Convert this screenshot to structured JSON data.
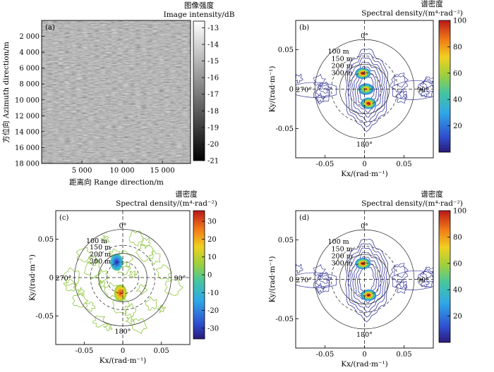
{
  "chart_data": [
    {
      "type": "heatmap",
      "panel_label": "(a)",
      "colorbar_title_cn": "图像强度",
      "colorbar_title_en": "Image intensity/dB",
      "xlabel": "距离向 Range direction/m",
      "ylabel": "方位向 Azimuth direction/m",
      "xlim": [
        0,
        18500
      ],
      "ylim": [
        18000,
        0
      ],
      "x_ticks": [
        "5 000",
        "10 000",
        "15 000"
      ],
      "x_tick_values": [
        5000,
        10000,
        15000
      ],
      "y_ticks": [
        "2 000",
        "4 000",
        "6 000",
        "8 000",
        "10 000",
        "12 000",
        "14 000",
        "16 000",
        "18 000"
      ],
      "y_tick_values": [
        2000,
        4000,
        6000,
        8000,
        10000,
        12000,
        14000,
        16000,
        18000
      ],
      "colorbar_range": [
        -21,
        -12.6
      ],
      "colorbar_ticks": [
        "-13",
        "-14",
        "-15",
        "-16",
        "-17",
        "-18",
        "-19",
        "-20",
        "-21"
      ],
      "colorbar_tick_values": [
        -13,
        -14,
        -15,
        -16,
        -17,
        -18,
        -19,
        -20,
        -21
      ],
      "colormap": [
        "#000000",
        "#ffffff"
      ]
    },
    {
      "type": "contour",
      "panel_label": "(b)",
      "colorbar_title_cn": "谱密度",
      "colorbar_title_en": "Spectral density/(m⁴·rad⁻²)",
      "xlabel": "Kx/(rad·m⁻¹)",
      "ylabel": "Ky/(rad·m⁻¹)",
      "xlim": [
        -0.087,
        0.087
      ],
      "ylim": [
        -0.087,
        0.087
      ],
      "x_ticks": [
        "-0.05",
        "0",
        "0.05"
      ],
      "x_tick_values": [
        -0.05,
        0,
        0.05
      ],
      "y_ticks": [
        "0.05",
        "0",
        "-0.05"
      ],
      "y_tick_values": [
        0.05,
        0,
        -0.05
      ],
      "colorbar_range": [
        0,
        100
      ],
      "colorbar_ticks": [
        "100",
        "80",
        "60",
        "40",
        "20"
      ],
      "colorbar_tick_values": [
        100,
        80,
        60,
        40,
        20
      ],
      "circle_labels": [
        "100 m",
        "150 m",
        "200 m",
        "300 m"
      ],
      "angle_labels": [
        "0°",
        "90°",
        "180°",
        "270°"
      ],
      "peaks": [
        {
          "kx": -0.002,
          "ky": 0.02,
          "value": 100
        },
        {
          "kx": 0.002,
          "ky": 0.0,
          "value": 85
        },
        {
          "kx": 0.005,
          "ky": -0.018,
          "value": 100
        }
      ]
    },
    {
      "type": "contour",
      "panel_label": "(c)",
      "colorbar_title_cn": "谱密度",
      "colorbar_title_en": "Spectral density/(m⁴·rad⁻²)",
      "xlabel": "Kx/(rad·m⁻¹)",
      "ylabel": "Ky/(rad·m⁻¹)",
      "xlim": [
        -0.087,
        0.087
      ],
      "ylim": [
        -0.087,
        0.087
      ],
      "x_ticks": [
        "-0.05",
        "0",
        "0.05"
      ],
      "x_tick_values": [
        -0.05,
        0,
        0.05
      ],
      "y_ticks": [
        "0.05",
        "0",
        "-0.05"
      ],
      "y_tick_values": [
        0.05,
        0,
        -0.05
      ],
      "colorbar_range": [
        -36,
        36
      ],
      "colorbar_ticks": [
        "30",
        "20",
        "10",
        "0",
        "-10",
        "-20",
        "-30"
      ],
      "colorbar_tick_values": [
        30,
        20,
        10,
        0,
        -10,
        -20,
        -30
      ],
      "circle_labels": [
        "100 m",
        "150 m",
        "200 m",
        "300 m"
      ],
      "angle_labels": [
        "0°",
        "90°",
        "180°",
        "270°"
      ],
      "peaks": [
        {
          "kx": -0.008,
          "ky": 0.02,
          "value": -30
        },
        {
          "kx": -0.003,
          "ky": -0.02,
          "value": 30
        }
      ]
    },
    {
      "type": "contour",
      "panel_label": "(d)",
      "colorbar_title_cn": "谱密度",
      "colorbar_title_en": "Spectral density/(m⁴·rad⁻²)",
      "xlabel": "Kx/(rad·m⁻¹)",
      "ylabel": "Ky/(rad·m⁻¹)",
      "xlim": [
        -0.087,
        0.087
      ],
      "ylim": [
        -0.087,
        0.087
      ],
      "x_ticks": [
        "-0.05",
        "0",
        "0.05"
      ],
      "x_tick_values": [
        -0.05,
        0,
        0.05
      ],
      "y_ticks": [
        "0.05",
        "0",
        "-0.05"
      ],
      "y_tick_values": [
        0.05,
        0,
        -0.05
      ],
      "colorbar_range": [
        0,
        100
      ],
      "colorbar_ticks": [
        "100",
        "80",
        "60",
        "40",
        "20"
      ],
      "colorbar_tick_values": [
        100,
        80,
        60,
        40,
        20
      ],
      "circle_labels": [
        "100 m",
        "150 m",
        "200 m",
        "300 m"
      ],
      "angle_labels": [
        "0°",
        "90°",
        "180°",
        "270°"
      ],
      "peaks": [
        {
          "kx": -0.002,
          "ky": 0.02,
          "value": 100
        },
        {
          "kx": 0.005,
          "ky": -0.02,
          "value": 100
        }
      ]
    }
  ]
}
